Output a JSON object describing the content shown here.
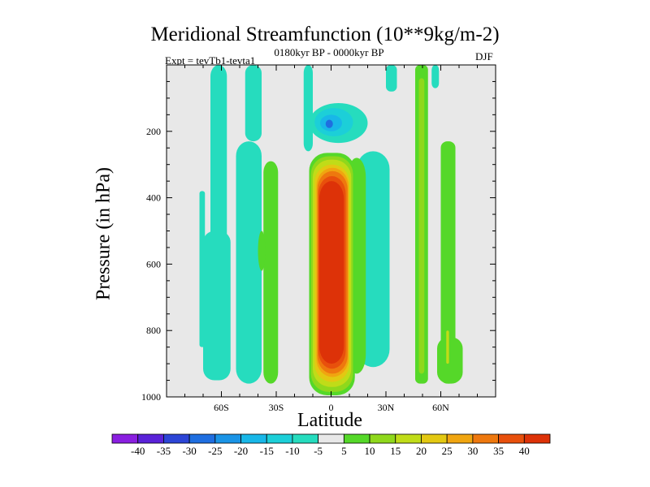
{
  "chart_data": {
    "type": "contour",
    "title": "Meridional Streamfunction (10**9kg/m-2)",
    "subtitle_left": "Expt = tevTb1-tevta1",
    "subtitle_center": "0180kyr BP - 0000kyr BP",
    "subtitle_right": "DJF",
    "xlabel": "Latitude",
    "ylabel": "Pressure (in hPa)",
    "xlim": [
      -90,
      90
    ],
    "ylim": [
      1000,
      0
    ],
    "x_ticks": [
      {
        "value": -60,
        "label": "60S"
      },
      {
        "value": -30,
        "label": "30S"
      },
      {
        "value": 0,
        "label": "0"
      },
      {
        "value": 30,
        "label": "30N"
      },
      {
        "value": 60,
        "label": "60N"
      }
    ],
    "y_ticks": [
      {
        "value": 200,
        "label": "200"
      },
      {
        "value": 400,
        "label": "400"
      },
      {
        "value": 600,
        "label": "600"
      },
      {
        "value": 800,
        "label": "800"
      },
      {
        "value": 1000,
        "label": "1000"
      }
    ],
    "colorbar": {
      "levels": [
        -40,
        -35,
        -30,
        -25,
        -20,
        -15,
        -10,
        -5,
        5,
        10,
        15,
        20,
        25,
        30,
        35,
        40
      ],
      "labels": [
        "-40",
        "-35",
        "-30",
        "-25",
        "-20",
        "-15",
        "-10",
        "-5",
        "5",
        "10",
        "15",
        "20",
        "25",
        "30",
        "35",
        "40"
      ],
      "colors": [
        "#8a1fe0",
        "#5a22d8",
        "#2c45d6",
        "#1f6ee0",
        "#1a94e6",
        "#18b7e8",
        "#1ccfd8",
        "#26dcbe",
        "#e8e8e8",
        "#55d829",
        "#8fd81c",
        "#c0dc18",
        "#e3c812",
        "#f0a510",
        "#ee780e",
        "#e8500c",
        "#dd3208"
      ]
    },
    "background_color": "#e8e8e8",
    "features": [
      {
        "name": "equatorial-positive-cell",
        "lat_range": [
          -8,
          10
        ],
        "p_range": [
          290,
          985
        ],
        "peak_value": 40,
        "sign": "positive"
      },
      {
        "name": "upper-negative-center",
        "lat_range": [
          -7,
          8
        ],
        "p_range": [
          140,
          210
        ],
        "peak_value": -30,
        "sign": "negative"
      },
      {
        "name": "southern-negative-band",
        "lat_range": [
          -68,
          -58
        ],
        "p_range": [
          0,
          950
        ],
        "peak_value": -10,
        "sign": "negative"
      },
      {
        "name": "southern-midlat-negative",
        "lat_range": [
          -48,
          -40
        ],
        "p_range": [
          0,
          960
        ],
        "peak_value": -10,
        "sign": "negative"
      },
      {
        "name": "southern-positive-band",
        "lat_range": [
          -37,
          -29
        ],
        "p_range": [
          290,
          960
        ],
        "peak_value": 10,
        "sign": "positive"
      },
      {
        "name": "northern-negative-cell",
        "lat_range": [
          18,
          32
        ],
        "p_range": [
          260,
          910
        ],
        "peak_value": -10,
        "sign": "negative"
      },
      {
        "name": "northern-positive-band",
        "lat_range": [
          46,
          53
        ],
        "p_range": [
          0,
          960
        ],
        "peak_value": 10,
        "sign": "positive"
      },
      {
        "name": "high-lat-positive-band",
        "lat_range": [
          60,
          68
        ],
        "p_range": [
          230,
          960
        ],
        "peak_value": 10,
        "sign": "positive"
      }
    ]
  }
}
